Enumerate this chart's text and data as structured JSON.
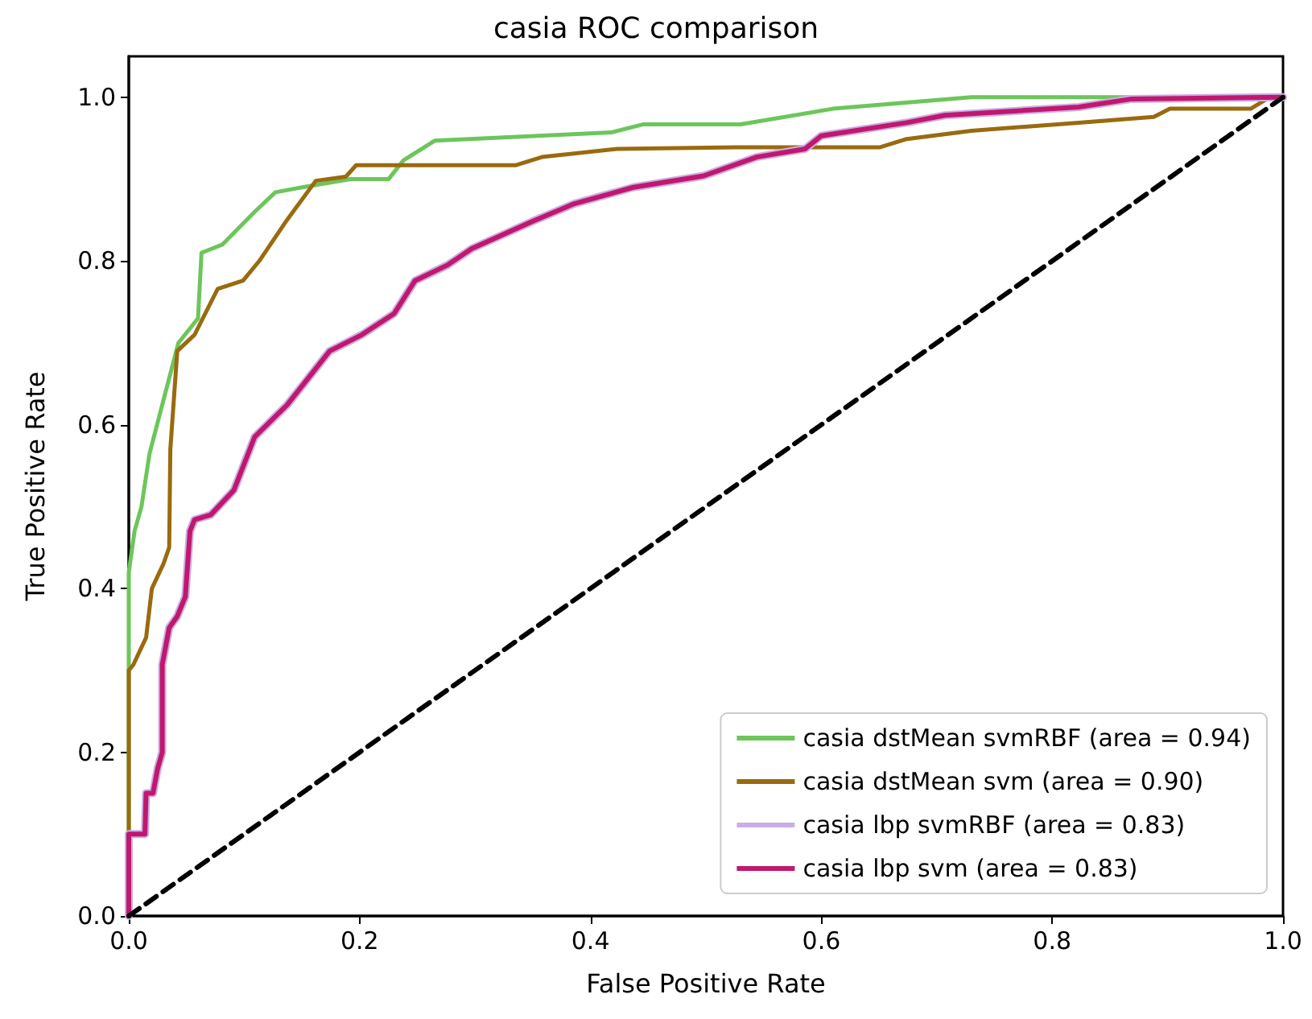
{
  "chart_data": {
    "type": "line",
    "title": "casia ROC comparison",
    "xlabel": "False Positive Rate",
    "ylabel": "True Positive Rate",
    "xlim": [
      0,
      1
    ],
    "ylim": [
      0,
      1.05
    ],
    "xticks": [
      {
        "value": 0,
        "label": "0.0"
      },
      {
        "value": 0.2,
        "label": "0.2"
      },
      {
        "value": 0.4,
        "label": "0.4"
      },
      {
        "value": 0.6,
        "label": "0.6"
      },
      {
        "value": 0.8,
        "label": "0.8"
      },
      {
        "value": 1,
        "label": "1.0"
      }
    ],
    "yticks": [
      {
        "value": 0,
        "label": "0.0"
      },
      {
        "value": 0.2,
        "label": "0.2"
      },
      {
        "value": 0.4,
        "label": "0.4"
      },
      {
        "value": 0.6,
        "label": "0.6"
      },
      {
        "value": 0.8,
        "label": "0.8"
      },
      {
        "value": 1,
        "label": "1.0"
      }
    ],
    "grid": false,
    "legend": "bottom right",
    "marker": "none",
    "line_style": "solid",
    "series": [
      {
        "name": "casia dstMean svmRBF (area = 0.94)",
        "color": "#6cc65a",
        "x": [
          0,
          0,
          0.005,
          0.011,
          0.018,
          0.043,
          0.06,
          0.063,
          0.081,
          0.109,
          0.127,
          0.15,
          0.192,
          0.225,
          0.238,
          0.265,
          0.418,
          0.446,
          0.53,
          0.61,
          0.73,
          1
        ],
        "values": [
          0,
          0.42,
          0.47,
          0.5,
          0.565,
          0.7,
          0.73,
          0.81,
          0.82,
          0.86,
          0.884,
          0.89,
          0.9,
          0.9,
          0.923,
          0.947,
          0.957,
          0.967,
          0.967,
          0.986,
          1,
          1
        ]
      },
      {
        "name": "casia dstMean svm (area = 0.90)",
        "color": "#9a6a0f",
        "x": [
          0,
          0,
          0.004,
          0.015,
          0.02,
          0.03,
          0.035,
          0.036,
          0.042,
          0.057,
          0.077,
          0.099,
          0.113,
          0.137,
          0.162,
          0.188,
          0.197,
          0.276,
          0.335,
          0.358,
          0.423,
          0.526,
          0.651,
          0.674,
          0.73,
          0.823,
          0.888,
          0.902,
          0.972,
          0.986,
          1
        ],
        "values": [
          0,
          0.3,
          0.307,
          0.34,
          0.4,
          0.43,
          0.45,
          0.57,
          0.69,
          0.71,
          0.766,
          0.776,
          0.8,
          0.85,
          0.898,
          0.903,
          0.917,
          0.917,
          0.917,
          0.927,
          0.937,
          0.939,
          0.939,
          0.949,
          0.959,
          0.969,
          0.976,
          0.986,
          0.986,
          0.998,
          1
        ]
      },
      {
        "name": "casia lbp svmRBF (area = 0.83)",
        "color": "#c9aee6",
        "x": [
          0,
          0,
          0.014,
          0.015,
          0.021,
          0.025,
          0.029,
          0.029,
          0.035,
          0.042,
          0.049,
          0.053,
          0.057,
          0.071,
          0.091,
          0.109,
          0.137,
          0.174,
          0.202,
          0.23,
          0.248,
          0.276,
          0.297,
          0.349,
          0.386,
          0.437,
          0.498,
          0.544,
          0.586,
          0.6,
          0.674,
          0.707,
          0.823,
          0.869,
          1
        ],
        "values": [
          0,
          0.1,
          0.1,
          0.15,
          0.15,
          0.18,
          0.2,
          0.307,
          0.352,
          0.366,
          0.39,
          0.47,
          0.484,
          0.49,
          0.52,
          0.585,
          0.624,
          0.69,
          0.71,
          0.736,
          0.776,
          0.795,
          0.815,
          0.848,
          0.87,
          0.89,
          0.904,
          0.927,
          0.937,
          0.953,
          0.969,
          0.978,
          0.988,
          0.998,
          1
        ]
      },
      {
        "name": "casia lbp svm (area = 0.83)",
        "color": "#c0186e",
        "x": [
          0,
          0,
          0.014,
          0.015,
          0.021,
          0.025,
          0.029,
          0.029,
          0.035,
          0.042,
          0.049,
          0.053,
          0.057,
          0.071,
          0.091,
          0.109,
          0.137,
          0.174,
          0.202,
          0.23,
          0.248,
          0.276,
          0.297,
          0.349,
          0.386,
          0.437,
          0.498,
          0.544,
          0.586,
          0.6,
          0.674,
          0.707,
          0.823,
          0.869,
          1
        ],
        "values": [
          0,
          0.1,
          0.1,
          0.15,
          0.15,
          0.18,
          0.2,
          0.307,
          0.352,
          0.366,
          0.39,
          0.47,
          0.484,
          0.49,
          0.52,
          0.585,
          0.624,
          0.69,
          0.71,
          0.736,
          0.776,
          0.795,
          0.815,
          0.848,
          0.87,
          0.89,
          0.904,
          0.927,
          0.937,
          0.953,
          0.969,
          0.978,
          0.988,
          0.998,
          1
        ]
      },
      {
        "color": "#000000",
        "line_style": "dashed",
        "x": [
          0,
          1
        ],
        "values": [
          0,
          1
        ]
      }
    ]
  }
}
